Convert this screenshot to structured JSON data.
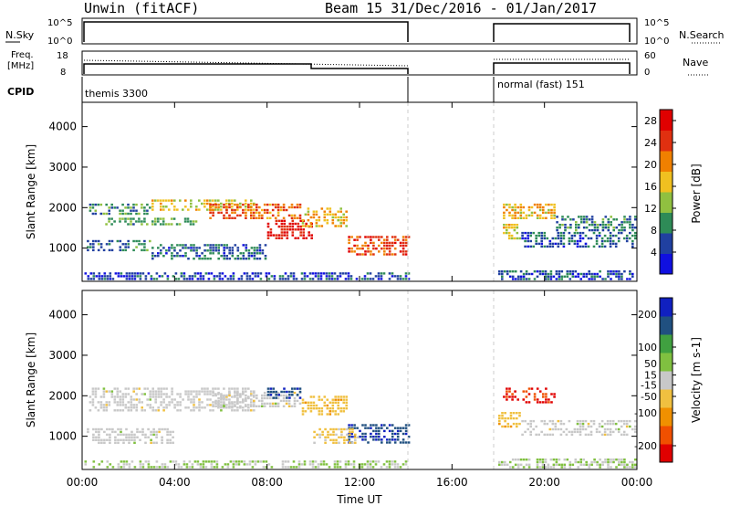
{
  "header": {
    "station": "Unwin (fitACF)",
    "beam_date": "Beam 15  31/Dec/2016 - 01/Jan/2017"
  },
  "status_panels": {
    "nsky": {
      "label": "N.Sky",
      "ticks": [
        "10^5",
        "10^0"
      ],
      "right_label": "N.Search",
      "right_ticks": [
        "10^5",
        "10^0"
      ]
    },
    "freq": {
      "label_lines": [
        "Freq.",
        "[MHz]"
      ],
      "ticks": [
        "18",
        "8"
      ],
      "right_label": "Nave",
      "right_ticks": [
        "60",
        "0"
      ]
    },
    "cpid": {
      "label": "CPID",
      "segments": [
        {
          "name": "themis 3300",
          "start_h": 0,
          "end_h": 14.2
        },
        {
          "name": "normal (fast) 151",
          "start_h": 18.0,
          "end_h": 24.0
        }
      ]
    }
  },
  "colors": {
    "power_scale": [
      "#1010e0",
      "#2040a0",
      "#2e8b57",
      "#90c040",
      "#f0c020",
      "#f08000",
      "#e03010",
      "#e00000"
    ],
    "velocity_scale": [
      "#e00000",
      "#f05000",
      "#f09000",
      "#f0c040",
      "#c8c8c8",
      "#80c040",
      "#40a040",
      "#205080",
      "#1020c0"
    ],
    "ground_scatter": "#c0c0c0"
  },
  "chart_data": [
    {
      "type": "heatmap",
      "name": "Power",
      "xlabel": "",
      "ylabel": "Slant Range [km]",
      "xlim": [
        0,
        24
      ],
      "ylim": [
        180,
        4600
      ],
      "x_ticks": [
        "00:00",
        "04:00",
        "08:00",
        "12:00",
        "16:00",
        "20:00",
        "00:00"
      ],
      "y_ticks": [
        1000,
        2000,
        3000,
        4000
      ],
      "colorbar": {
        "label": "Power [dB]",
        "ticks": [
          4,
          8,
          12,
          16,
          20,
          24,
          28
        ],
        "range": [
          0,
          30
        ]
      },
      "data_gap_h": [
        14.2,
        18.0
      ],
      "echo_bands": [
        {
          "t0": 0.3,
          "t1": 3.0,
          "r0": 1800,
          "r1": 2100,
          "power": 9
        },
        {
          "t0": 1.0,
          "t1": 5.0,
          "r0": 1550,
          "r1": 1750,
          "power": 10
        },
        {
          "t0": 3.0,
          "t1": 7.5,
          "r0": 1900,
          "r1": 2200,
          "power": 16
        },
        {
          "t0": 5.5,
          "t1": 9.5,
          "r0": 1700,
          "r1": 2100,
          "power": 22
        },
        {
          "t0": 8.0,
          "t1": 10.0,
          "r0": 1200,
          "r1": 1700,
          "power": 27
        },
        {
          "t0": 9.5,
          "t1": 11.5,
          "r0": 1500,
          "r1": 2000,
          "power": 18
        },
        {
          "t0": 11.5,
          "t1": 14.2,
          "r0": 800,
          "r1": 1300,
          "power": 24
        },
        {
          "t0": 0.2,
          "t1": 3.0,
          "r0": 900,
          "r1": 1200,
          "power": 8
        },
        {
          "t0": 3.0,
          "t1": 8.0,
          "r0": 700,
          "r1": 1100,
          "power": 7
        },
        {
          "t0": 0.1,
          "t1": 14.2,
          "r0": 200,
          "r1": 400,
          "power": 5
        },
        {
          "t0": 18.2,
          "t1": 20.5,
          "r0": 1700,
          "r1": 2100,
          "power": 18
        },
        {
          "t0": 18.2,
          "t1": 19.0,
          "r0": 1200,
          "r1": 1600,
          "power": 16
        },
        {
          "t0": 19.0,
          "t1": 24.0,
          "r0": 1000,
          "r1": 1400,
          "power": 7
        },
        {
          "t0": 20.5,
          "t1": 24.0,
          "r0": 1400,
          "r1": 1800,
          "power": 8
        },
        {
          "t0": 18.0,
          "t1": 24.0,
          "r0": 200,
          "r1": 450,
          "power": 6
        }
      ]
    },
    {
      "type": "heatmap",
      "name": "Velocity",
      "xlabel": "Time UT",
      "ylabel": "Slant Range [km]",
      "xlim": [
        0,
        24
      ],
      "ylim": [
        180,
        4600
      ],
      "x_ticks": [
        "00:00",
        "04:00",
        "08:00",
        "12:00",
        "16:00",
        "20:00",
        "00:00"
      ],
      "y_ticks": [
        1000,
        2000,
        3000,
        4000
      ],
      "colorbar": {
        "label": "Velocity [m s-1]",
        "ticks": [
          200,
          100,
          50,
          15,
          -15,
          -50,
          -100,
          -200
        ],
        "range": [
          -250,
          250
        ]
      },
      "data_gap_h": [
        14.2,
        18.0
      ],
      "echo_bands": [
        {
          "t0": 0.3,
          "t1": 7.5,
          "r0": 1600,
          "r1": 2200,
          "velocity": 0
        },
        {
          "t0": 5.5,
          "t1": 9.5,
          "r0": 1700,
          "r1": 2100,
          "velocity": 0
        },
        {
          "t0": 8.0,
          "t1": 9.5,
          "r0": 1900,
          "r1": 2200,
          "velocity": 180
        },
        {
          "t0": 9.5,
          "t1": 11.5,
          "r0": 1500,
          "r1": 2000,
          "velocity": -60
        },
        {
          "t0": 11.5,
          "t1": 14.2,
          "r0": 800,
          "r1": 1300,
          "velocity": 190
        },
        {
          "t0": 10.0,
          "t1": 12.0,
          "r0": 800,
          "r1": 1200,
          "velocity": -40
        },
        {
          "t0": 0.2,
          "t1": 4.0,
          "r0": 800,
          "r1": 1200,
          "velocity": 0
        },
        {
          "t0": 0.1,
          "t1": 14.2,
          "r0": 200,
          "r1": 400,
          "velocity": 30
        },
        {
          "t0": 18.2,
          "t1": 20.5,
          "r0": 1800,
          "r1": 2200,
          "velocity": -200
        },
        {
          "t0": 18.0,
          "t1": 19.0,
          "r0": 1200,
          "r1": 1600,
          "velocity": -60
        },
        {
          "t0": 19.0,
          "t1": 24.0,
          "r0": 1000,
          "r1": 1400,
          "velocity": 0
        },
        {
          "t0": 18.0,
          "t1": 24.0,
          "r0": 200,
          "r1": 450,
          "velocity": 30
        }
      ]
    }
  ]
}
